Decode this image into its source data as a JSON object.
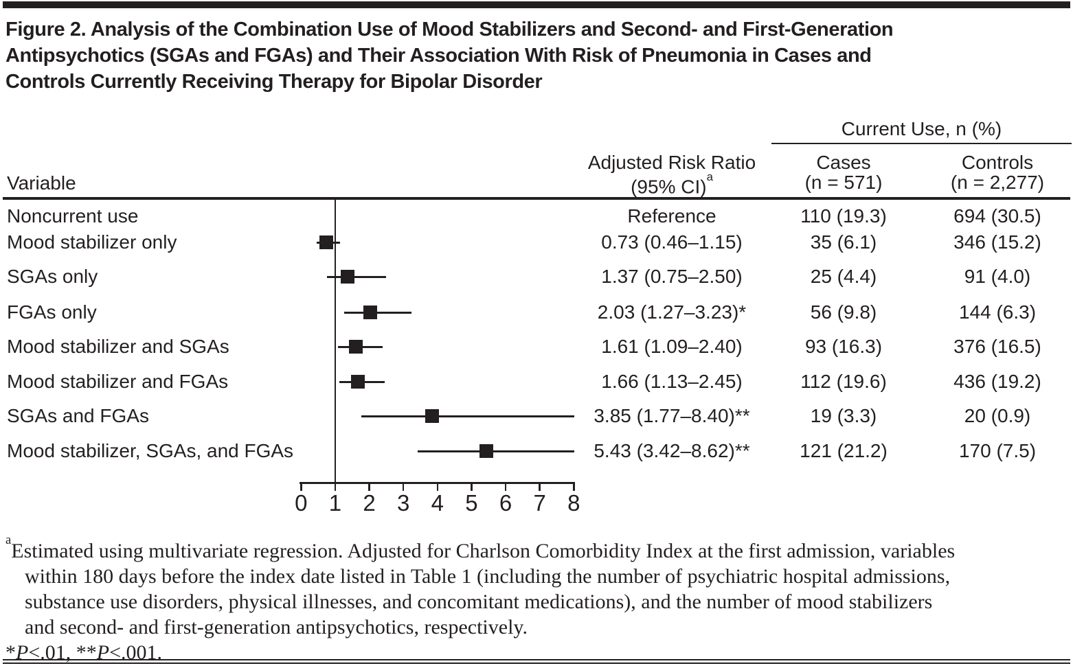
{
  "figure": {
    "title_lines": [
      "Figure 2. Analysis of the Combination Use of Mood Stabilizers and Second- and First-Generation",
      "Antipsychotics (SGAs and FGAs) and Their Association With Risk of Pneumonia in Cases and",
      "Controls Currently Receiving Therapy for Bipolar Disorder"
    ]
  },
  "table": {
    "variable_header": "Variable",
    "arr_header_line1": "Adjusted Risk Ratio",
    "arr_header_line2": "(95% CI)",
    "arr_header_sup": "a",
    "spanner": "Current Use, n (%)",
    "cases_header_line1": "Cases",
    "cases_header_line2": "(n = 571)",
    "controls_header_line1": "Controls",
    "controls_header_line2": "(n = 2,277)"
  },
  "chart_data": {
    "type": "scatter",
    "subtype": "forest-plot",
    "title": "Figure 2. Analysis of the Combination Use of Mood Stabilizers and Second- and First-Generation Antipsychotics (SGAs and FGAs) and Their Association With Risk of Pneumonia in Cases and Controls Currently Receiving Therapy for Bipolar Disorder",
    "xlim": [
      0,
      8
    ],
    "x_ticks": [
      0,
      1,
      2,
      3,
      4,
      5,
      6,
      7,
      8
    ],
    "reference_line_x": 1,
    "grid": false,
    "marker": "black-square",
    "rows": [
      {
        "variable": "Noncurrent use",
        "estimate": null,
        "ci_low": null,
        "ci_high": null,
        "arr_label": "Reference",
        "cases": "110 (19.3)",
        "controls": "694 (30.5)"
      },
      {
        "variable": "Mood stabilizer only",
        "estimate": 0.73,
        "ci_low": 0.46,
        "ci_high": 1.15,
        "arr_label": "0.73 (0.46–1.15)",
        "cases": "35 (6.1)",
        "controls": "346 (15.2)"
      },
      {
        "variable": "SGAs only",
        "estimate": 1.37,
        "ci_low": 0.75,
        "ci_high": 2.5,
        "arr_label": "1.37 (0.75–2.50)",
        "cases": "25 (4.4)",
        "controls": "91 (4.0)"
      },
      {
        "variable": "FGAs only",
        "estimate": 2.03,
        "ci_low": 1.27,
        "ci_high": 3.23,
        "arr_label": "2.03 (1.27–3.23)*",
        "cases": "56 (9.8)",
        "controls": "144 (6.3)"
      },
      {
        "variable": "Mood stabilizer and SGAs",
        "estimate": 1.61,
        "ci_low": 1.09,
        "ci_high": 2.4,
        "arr_label": "1.61 (1.09–2.40)",
        "cases": "93 (16.3)",
        "controls": "376 (16.5)"
      },
      {
        "variable": "Mood stabilizer and FGAs",
        "estimate": 1.66,
        "ci_low": 1.13,
        "ci_high": 2.45,
        "arr_label": "1.66 (1.13–2.45)",
        "cases": "112 (19.6)",
        "controls": "436 (19.2)"
      },
      {
        "variable": "SGAs and FGAs",
        "estimate": 3.85,
        "ci_low": 1.77,
        "ci_high": 8.4,
        "arr_label": "3.85 (1.77–8.40)**",
        "cases": "19 (3.3)",
        "controls": "20 (0.9)"
      },
      {
        "variable": "Mood stabilizer, SGAs, and FGAs",
        "estimate": 5.43,
        "ci_low": 3.42,
        "ci_high": 8.62,
        "arr_label": "5.43 (3.42–8.62)**",
        "cases": "121 (21.2)",
        "controls": "170 (7.5)"
      }
    ]
  },
  "footnotes": {
    "a_sup": "a",
    "a_lines": [
      "Estimated using multivariate regression. Adjusted for Charlson Comorbidity Index at the first admission, variables",
      "within 180 days before the index date listed in Table 1 (including the number of psychiatric hospital admissions,",
      "substance use disorders, physical illnesses, and concomitant medications), and the number of mood stabilizers",
      "and second- and first-generation antipsychotics, respectively."
    ],
    "sig_parts": [
      "*",
      "P",
      "<.01, **",
      "P",
      "<.001."
    ]
  },
  "colors": {
    "ink": "#231f20",
    "background": "#ffffff"
  }
}
